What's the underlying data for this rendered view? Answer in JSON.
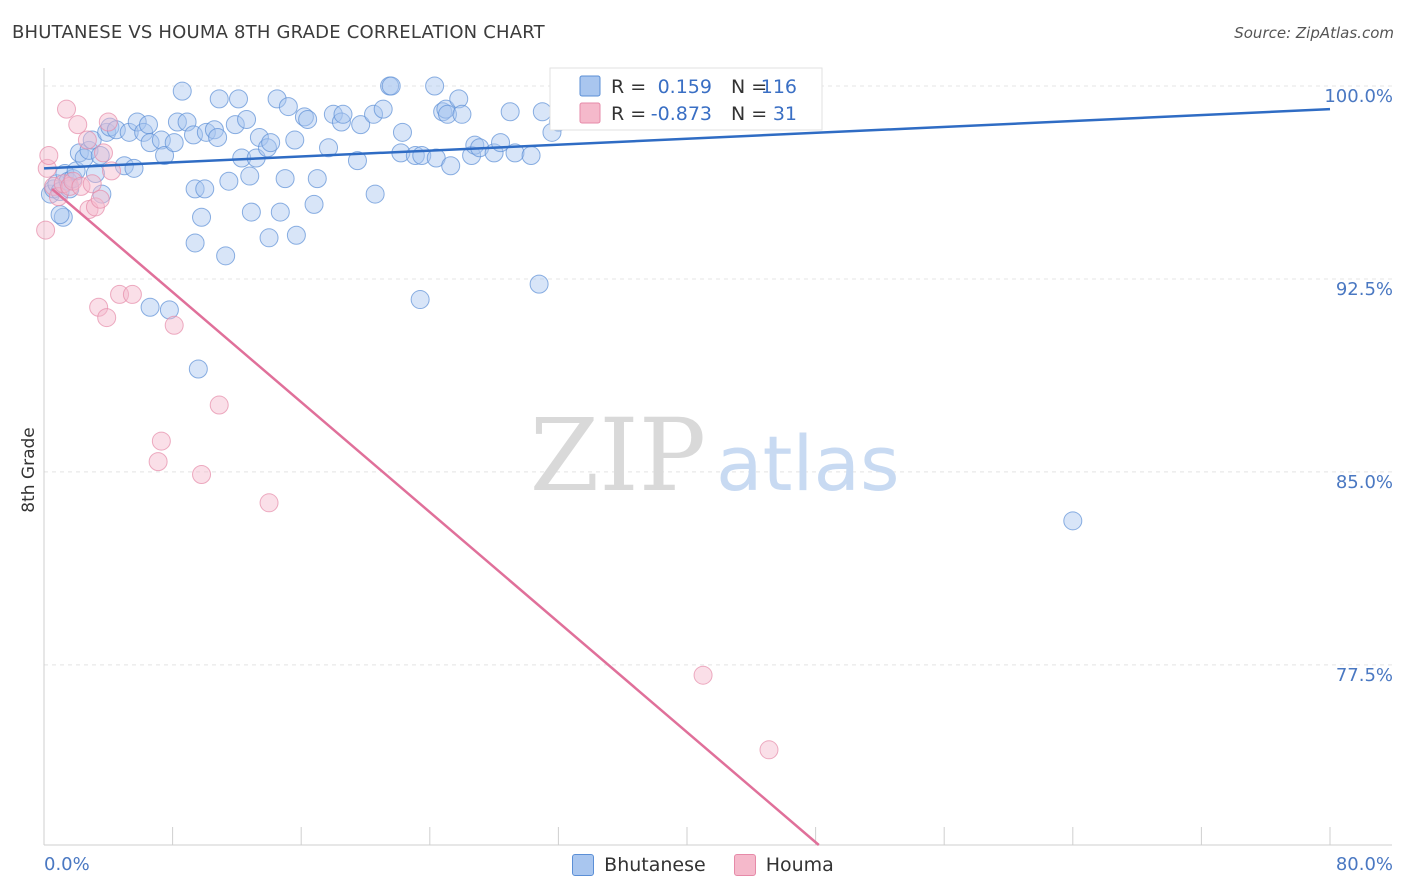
{
  "title": "BHUTANESE VS HOUMA 8TH GRADE CORRELATION CHART",
  "source": "Source: ZipAtlas.com",
  "watermark": {
    "part1": "ZIP",
    "part2": "atlas"
  },
  "legend": {
    "rows": [
      {
        "r_label": "R =",
        "r_value": "0.159",
        "n_label": "N =",
        "n_value": "116"
      },
      {
        "r_label": "R =",
        "r_value": "-0.873",
        "n_label": "N =",
        "n_value": "31"
      }
    ]
  },
  "bottom_legend": [
    {
      "label": "Bhutanese",
      "color": "#a9c6ef"
    },
    {
      "label": "Houma",
      "color": "#f5b9cb"
    }
  ],
  "chart_data": {
    "type": "scatter",
    "title": "BHUTANESE VS HOUMA 8TH GRADE CORRELATION CHART",
    "xlabel": "",
    "ylabel": "8th Grade",
    "xlim": [
      0,
      80
    ],
    "ylim": [
      70.5,
      100.7
    ],
    "x_tick_labels": [
      "0.0%",
      "80.0%"
    ],
    "y_ticks": [
      77.5,
      85.0,
      92.5,
      100.0
    ],
    "y_tick_labels": [
      "77.5%",
      "85.0%",
      "92.5%",
      "100.0%"
    ],
    "grid": true,
    "colors": {
      "bhutanese": "#5b8fd6",
      "bhutanese_fill": "#a9c6ef",
      "bhutanese_line": "#2f6cc4",
      "houma": "#e68aa8",
      "houma_fill": "#f5b9cb",
      "houma_line": "#e0709a"
    },
    "series": [
      {
        "name": "Bhutanese",
        "r": 0.159,
        "n": 116,
        "trend": [
          [
            0,
            96.8
          ],
          [
            80,
            99.1
          ]
        ],
        "points": [
          [
            0.4,
            95.8
          ],
          [
            0.6,
            96.0
          ],
          [
            0.8,
            96.2
          ],
          [
            1.0,
            95.9
          ],
          [
            1.2,
            94.9
          ],
          [
            1.3,
            96.6
          ],
          [
            1.5,
            96.3
          ],
          [
            1.6,
            96.0
          ],
          [
            1.8,
            96.4
          ],
          [
            2.0,
            96.7
          ],
          [
            2.2,
            97.4
          ],
          [
            2.5,
            97.2
          ],
          [
            2.8,
            97.5
          ],
          [
            3.0,
            97.9
          ],
          [
            3.2,
            96.6
          ],
          [
            3.5,
            97.3
          ],
          [
            3.6,
            95.8
          ],
          [
            3.9,
            98.2
          ],
          [
            4.1,
            98.4
          ],
          [
            4.5,
            98.3
          ],
          [
            5.0,
            96.9
          ],
          [
            5.3,
            98.2
          ],
          [
            5.6,
            96.8
          ],
          [
            5.8,
            98.6
          ],
          [
            6.2,
            98.2
          ],
          [
            6.5,
            98.5
          ],
          [
            6.6,
            97.8
          ],
          [
            7.3,
            97.9
          ],
          [
            7.5,
            97.3
          ],
          [
            8.1,
            97.8
          ],
          [
            8.3,
            98.6
          ],
          [
            8.6,
            99.8
          ],
          [
            8.9,
            98.6
          ],
          [
            9.3,
            98.1
          ],
          [
            9.4,
            96.0
          ],
          [
            10.0,
            96.0
          ],
          [
            10.1,
            98.2
          ],
          [
            10.6,
            98.3
          ],
          [
            10.8,
            98.0
          ],
          [
            10.9,
            99.5
          ],
          [
            11.5,
            96.3
          ],
          [
            11.9,
            98.5
          ],
          [
            12.1,
            99.5
          ],
          [
            12.3,
            97.2
          ],
          [
            12.6,
            98.7
          ],
          [
            12.8,
            96.5
          ],
          [
            13.2,
            97.2
          ],
          [
            13.4,
            98.0
          ],
          [
            13.9,
            97.6
          ],
          [
            14.1,
            97.8
          ],
          [
            14.5,
            99.5
          ],
          [
            15.0,
            96.4
          ],
          [
            15.2,
            99.2
          ],
          [
            15.6,
            97.9
          ],
          [
            16.2,
            98.8
          ],
          [
            16.4,
            98.7
          ],
          [
            17.0,
            96.4
          ],
          [
            17.7,
            97.6
          ],
          [
            18.0,
            98.9
          ],
          [
            18.5,
            98.6
          ],
          [
            18.6,
            98.9
          ],
          [
            19.5,
            97.1
          ],
          [
            19.7,
            98.5
          ],
          [
            20.5,
            98.9
          ],
          [
            21.1,
            99.1
          ],
          [
            21.5,
            100.0
          ],
          [
            21.6,
            100.0
          ],
          [
            22.2,
            97.4
          ],
          [
            22.3,
            98.2
          ],
          [
            23.1,
            97.3
          ],
          [
            23.5,
            97.3
          ],
          [
            24.3,
            100.0
          ],
          [
            24.4,
            97.2
          ],
          [
            24.8,
            99.0
          ],
          [
            25.0,
            99.1
          ],
          [
            25.1,
            98.9
          ],
          [
            25.3,
            96.9
          ],
          [
            25.8,
            99.5
          ],
          [
            26.0,
            98.9
          ],
          [
            26.6,
            97.3
          ],
          [
            26.8,
            97.7
          ],
          [
            27.1,
            97.6
          ],
          [
            28.0,
            97.4
          ],
          [
            28.4,
            97.8
          ],
          [
            29.0,
            99.0
          ],
          [
            29.3,
            97.4
          ],
          [
            30.3,
            97.3
          ],
          [
            31.0,
            99.0
          ],
          [
            31.6,
            98.2
          ],
          [
            32.0,
            98.6
          ],
          [
            32.5,
            100.0
          ],
          [
            33.5,
            99.9
          ],
          [
            35.7,
            99.5
          ],
          [
            36.2,
            100.0
          ],
          [
            38.0,
            100.0
          ],
          [
            39.0,
            99.9
          ],
          [
            40.0,
            99.8
          ],
          [
            41.5,
            100.0
          ],
          [
            42.8,
            100.0
          ],
          [
            44.0,
            100.0
          ],
          [
            1.0,
            95.0
          ],
          [
            9.8,
            94.9
          ],
          [
            12.9,
            95.1
          ],
          [
            14.0,
            94.1
          ],
          [
            14.7,
            95.1
          ],
          [
            15.7,
            94.2
          ],
          [
            16.8,
            95.4
          ],
          [
            20.6,
            95.8
          ],
          [
            9.4,
            93.9
          ],
          [
            11.3,
            93.4
          ],
          [
            30.8,
            92.3
          ],
          [
            23.4,
            91.7
          ],
          [
            6.6,
            91.4
          ],
          [
            7.8,
            91.3
          ],
          [
            9.6,
            89.0
          ],
          [
            64.0,
            83.1
          ]
        ]
      },
      {
        "name": "Houma",
        "r": -0.873,
        "n": 31,
        "trend": [
          [
            0.5,
            96.0
          ],
          [
            48.2,
            70.5
          ]
        ],
        "points": [
          [
            0.1,
            94.4
          ],
          [
            0.2,
            96.8
          ],
          [
            0.3,
            97.3
          ],
          [
            0.6,
            96.1
          ],
          [
            0.9,
            95.7
          ],
          [
            1.2,
            96.2
          ],
          [
            1.4,
            99.1
          ],
          [
            1.6,
            96.1
          ],
          [
            1.8,
            96.3
          ],
          [
            2.1,
            98.5
          ],
          [
            2.3,
            96.1
          ],
          [
            2.7,
            97.9
          ],
          [
            2.8,
            95.2
          ],
          [
            3.0,
            96.2
          ],
          [
            3.2,
            95.3
          ],
          [
            3.5,
            95.6
          ],
          [
            3.7,
            97.4
          ],
          [
            4.0,
            98.6
          ],
          [
            4.2,
            96.7
          ],
          [
            3.4,
            91.4
          ],
          [
            3.9,
            91.0
          ],
          [
            4.7,
            91.9
          ],
          [
            5.5,
            91.9
          ],
          [
            8.1,
            90.7
          ],
          [
            10.9,
            87.6
          ],
          [
            7.3,
            86.2
          ],
          [
            7.1,
            85.4
          ],
          [
            9.8,
            84.9
          ],
          [
            14.0,
            83.8
          ],
          [
            41.0,
            77.1
          ],
          [
            45.1,
            74.2
          ]
        ]
      }
    ]
  }
}
